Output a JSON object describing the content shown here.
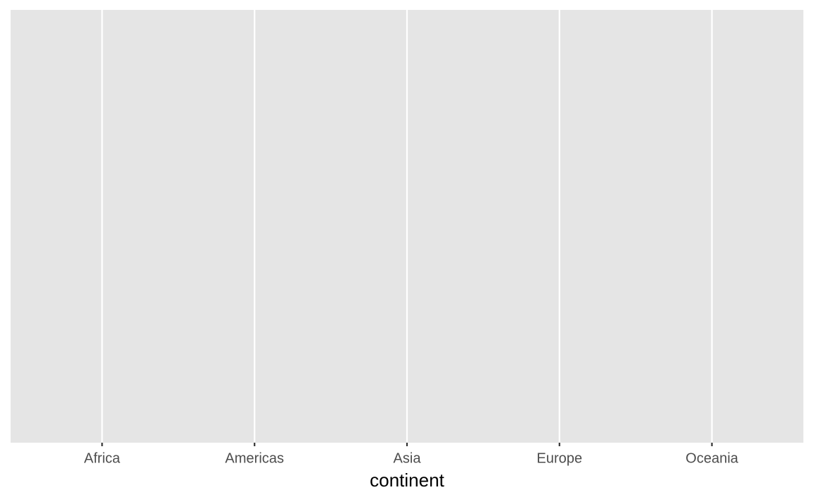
{
  "chart_data": {
    "type": "bar",
    "categories": [
      "Africa",
      "Americas",
      "Asia",
      "Europe",
      "Oceania"
    ],
    "x_label": "continent",
    "grid": true
  }
}
